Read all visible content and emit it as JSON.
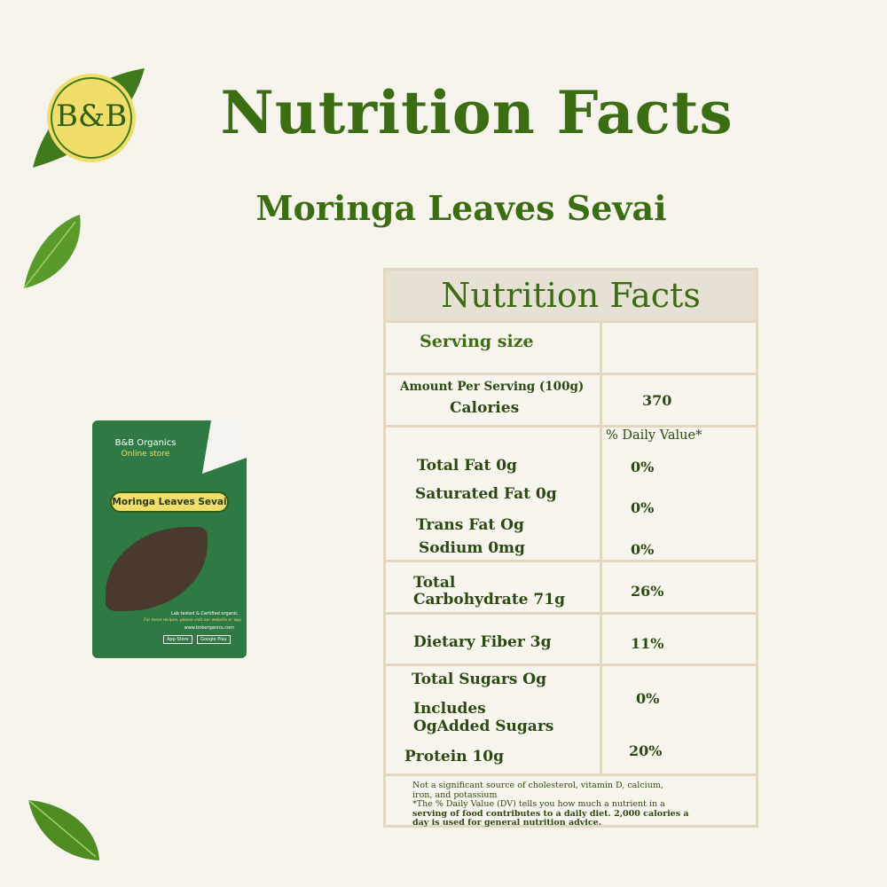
{
  "brand": {
    "logo_text": "B&B"
  },
  "title": "Nutrition Facts",
  "subtitle": "Moringa Leaves Sevai",
  "package": {
    "brand": "B&B Organics",
    "store": "Online store",
    "product": "Moringa Leaves Sevai",
    "lab": "Lab tested & Certified organic",
    "recipes": "For more recipes, please visit our website or app",
    "website": "www.bnborganics.com",
    "app_store": "App Store",
    "google_play": "Google Play"
  },
  "table": {
    "header": "Nutrition Facts",
    "serving_size_label": "Serving size",
    "serving_size_value": "",
    "amount_label": "Amount Per Serving  (100g)",
    "calories_label": "Calories",
    "calories_value": "370",
    "dv_header": "% Daily Value*",
    "rows": [
      {
        "label": "Total Fat 0g",
        "dv": "0%"
      },
      {
        "label": "Saturated Fat 0g",
        "dv": "0%"
      },
      {
        "label": "Trans Fat Og",
        "dv": ""
      },
      {
        "label": "Sodium 0mg",
        "dv": "0%"
      },
      {
        "label": "Total",
        "label2": "Carbohydrate 71g",
        "dv": "26%"
      },
      {
        "label": "Dietary Fiber 3g",
        "dv": "11%"
      },
      {
        "label": "Total Sugars Og",
        "dv": "0%"
      },
      {
        "label": "Includes",
        "label2": "OgAdded Sugars",
        "dv": ""
      },
      {
        "label": "Protein 10g",
        "dv": "20%"
      }
    ],
    "footnote1": "Not a significant source of cholesterol, vitamin D, calcium,",
    "footnote2": "iron, and potassium",
    "footnote3": "*The % Daily Value (DV) tells you how much a nutrient in a",
    "footnote4": "serving of food contributes to a daily diet. 2,000 calories a",
    "footnote5": "day is used for general nutrition advice."
  }
}
